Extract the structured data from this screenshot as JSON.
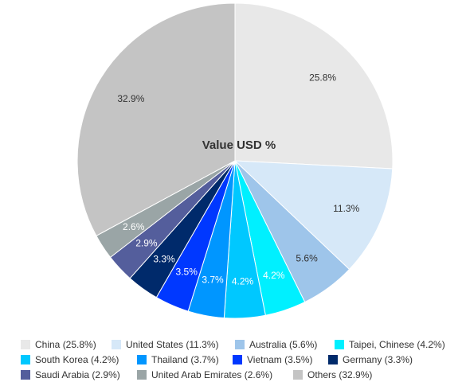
{
  "chart_data": {
    "type": "pie",
    "title": "Value USD %",
    "start": "12 o'clock",
    "direction": "clockwise",
    "legend_position": "bottom",
    "slices": [
      {
        "name": "China",
        "value": 25.8,
        "label": "25.8%",
        "legend": "China (25.8%)",
        "color": "#e8e8e8",
        "label_color": "#333333"
      },
      {
        "name": "United States",
        "value": 11.3,
        "label": "11.3%",
        "legend": "United States (11.3%)",
        "color": "#d6e8f8",
        "label_color": "#333333"
      },
      {
        "name": "Australia",
        "value": 5.6,
        "label": "5.6%",
        "legend": "Australia (5.6%)",
        "color": "#9ec5ea",
        "label_color": "#333333"
      },
      {
        "name": "Taipei, Chinese",
        "value": 4.2,
        "label": "4.2%",
        "legend": "Taipei, Chinese (4.2%)",
        "color": "#00f0ff",
        "label_color": "#ffffff"
      },
      {
        "name": "South Korea",
        "value": 4.2,
        "label": "4.2%",
        "legend": "South Korea (4.2%)",
        "color": "#00c8ff",
        "label_color": "#ffffff"
      },
      {
        "name": "Thailand",
        "value": 3.7,
        "label": "3.7%",
        "legend": "Thailand (3.7%)",
        "color": "#0096ff",
        "label_color": "#ffffff"
      },
      {
        "name": "Vietnam",
        "value": 3.5,
        "label": "3.5%",
        "legend": "Vietnam (3.5%)",
        "color": "#0038ff",
        "label_color": "#ffffff"
      },
      {
        "name": "Germany",
        "value": 3.3,
        "label": "3.3%",
        "legend": "Germany (3.3%)",
        "color": "#002a6b",
        "label_color": "#ffffff"
      },
      {
        "name": "Saudi Arabia",
        "value": 2.9,
        "label": "2.9%",
        "legend": "Saudi Arabia (2.9%)",
        "color": "#545e9c",
        "label_color": "#ffffff"
      },
      {
        "name": "United Arab Emirates",
        "value": 2.6,
        "label": "2.6%",
        "legend": "United Arab Emirates (2.6%)",
        "color": "#9aa5a6",
        "label_color": "#ffffff"
      },
      {
        "name": "Others",
        "value": 32.9,
        "label": "32.9%",
        "legend": "Others (32.9%)",
        "color": "#c4c4c4",
        "label_color": "#333333"
      }
    ]
  }
}
